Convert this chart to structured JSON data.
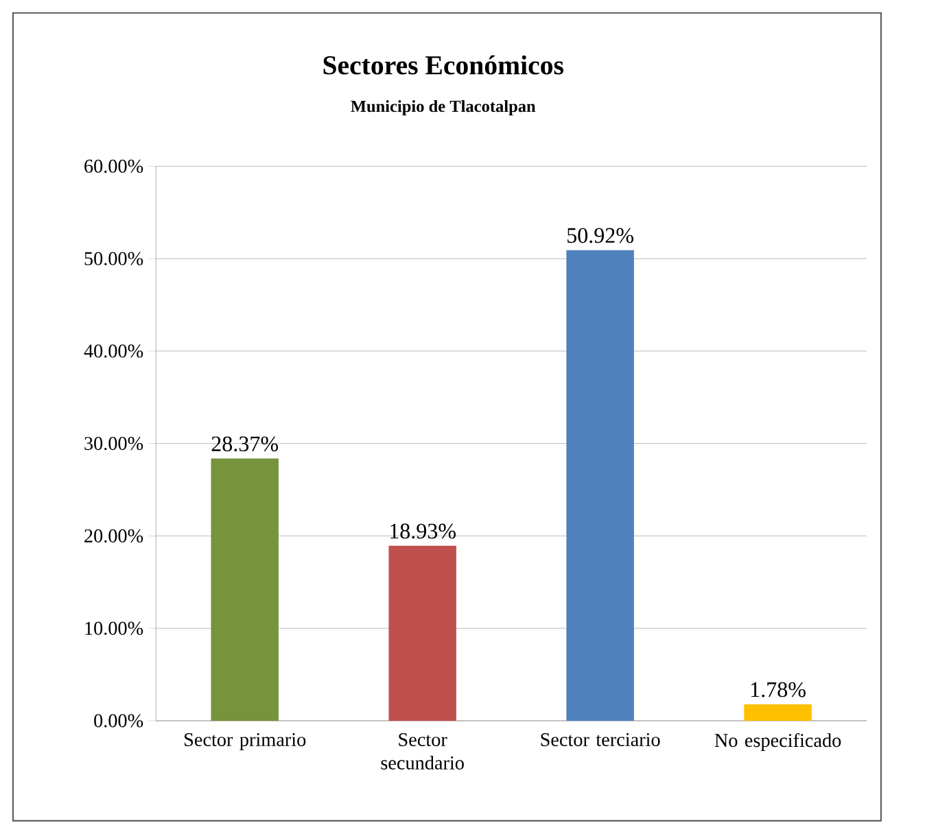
{
  "chart_data": {
    "type": "bar",
    "title": "Sectores Económicos",
    "subtitle": "Municipio de Tlacotalpan",
    "categories": [
      "Sector primario",
      "Sector secundario",
      "Sector terciario",
      "No especificado"
    ],
    "values": [
      28.37,
      18.93,
      50.92,
      1.78
    ],
    "colors": [
      "#77933c",
      "#c0504d",
      "#4f81bd",
      "#ffc000"
    ],
    "value_labels": [
      "28.37%",
      "18.93%",
      "50.92%",
      "1.78%"
    ],
    "ylim": [
      0,
      60
    ],
    "yticks": [
      {
        "value": 0,
        "label": "0.00%"
      },
      {
        "value": 10,
        "label": "10.00%"
      },
      {
        "value": 20,
        "label": "20.00%"
      },
      {
        "value": 30,
        "label": "30.00%"
      },
      {
        "value": 40,
        "label": "40.00%"
      },
      {
        "value": 50,
        "label": "50.00%"
      },
      {
        "value": 60,
        "label": "60.00%"
      }
    ],
    "grid": "y"
  }
}
